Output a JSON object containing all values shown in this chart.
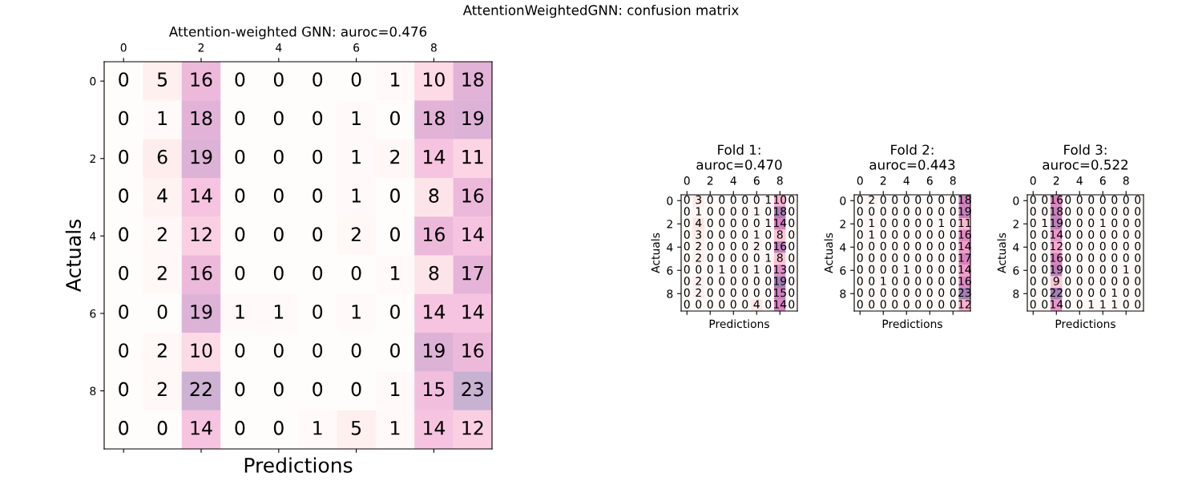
{
  "chart_data": [
    {
      "type": "heatmap",
      "title": "AttentionWeightedGNN: confusion matrix",
      "subtitle": "Attention-weighted GNN: auroc=0.476",
      "xlabel": "Predictions",
      "ylabel": "Actuals",
      "categories": [
        "0",
        null,
        "2",
        null,
        "4",
        null,
        "6",
        null,
        "8",
        null
      ],
      "y_categories": [
        "0",
        null,
        "2",
        null,
        "4",
        null,
        "6",
        null,
        "8",
        null
      ],
      "data_labels": true,
      "cells": [
        [
          0,
          5,
          16,
          0,
          0,
          0,
          0,
          1,
          10,
          18
        ],
        [
          0,
          1,
          18,
          0,
          0,
          0,
          1,
          0,
          18,
          19
        ],
        [
          0,
          6,
          19,
          0,
          0,
          0,
          1,
          2,
          14,
          11
        ],
        [
          0,
          4,
          14,
          0,
          0,
          0,
          1,
          0,
          8,
          16
        ],
        [
          0,
          2,
          12,
          0,
          0,
          0,
          2,
          0,
          16,
          14
        ],
        [
          0,
          2,
          16,
          0,
          0,
          0,
          0,
          1,
          8,
          17
        ],
        [
          0,
          0,
          19,
          1,
          1,
          0,
          1,
          0,
          14,
          14
        ],
        [
          0,
          2,
          10,
          0,
          0,
          0,
          0,
          0,
          19,
          16
        ],
        [
          0,
          2,
          22,
          0,
          0,
          0,
          0,
          1,
          15,
          23
        ],
        [
          0,
          0,
          14,
          0,
          0,
          1,
          5,
          1,
          14,
          12
        ]
      ]
    },
    {
      "type": "heatmap",
      "title": "Fold 1:\nauroc=0.470",
      "xlabel": "Predictions",
      "ylabel": "Actuals",
      "categories": [
        "0",
        null,
        "2",
        null,
        "4",
        null,
        "6",
        null,
        "8",
        null
      ],
      "y_categories": [
        "0",
        null,
        "2",
        null,
        "4",
        null,
        "6",
        null,
        "8",
        null
      ],
      "data_labels": true,
      "cells": [
        [
          0,
          3,
          0,
          0,
          0,
          0,
          0,
          1,
          10,
          0
        ],
        [
          0,
          1,
          0,
          0,
          0,
          0,
          1,
          0,
          18,
          0
        ],
        [
          0,
          4,
          0,
          0,
          0,
          0,
          0,
          1,
          14,
          0
        ],
        [
          0,
          3,
          0,
          0,
          0,
          0,
          1,
          0,
          8,
          0
        ],
        [
          0,
          2,
          0,
          0,
          0,
          0,
          2,
          0,
          16,
          0
        ],
        [
          0,
          2,
          0,
          0,
          0,
          0,
          0,
          1,
          8,
          0
        ],
        [
          0,
          0,
          0,
          1,
          0,
          0,
          1,
          0,
          13,
          0
        ],
        [
          0,
          2,
          0,
          0,
          0,
          0,
          0,
          0,
          19,
          0
        ],
        [
          0,
          2,
          0,
          0,
          0,
          0,
          0,
          0,
          15,
          0
        ],
        [
          0,
          0,
          0,
          0,
          0,
          0,
          4,
          0,
          14,
          0
        ]
      ]
    },
    {
      "type": "heatmap",
      "title": "Fold 2:\nauroc=0.443",
      "xlabel": "Predictions",
      "ylabel": "Actuals",
      "categories": [
        "0",
        null,
        "2",
        null,
        "4",
        null,
        "6",
        null,
        "8",
        null
      ],
      "y_categories": [
        "0",
        null,
        "2",
        null,
        "4",
        null,
        "6",
        null,
        "8",
        null
      ],
      "data_labels": true,
      "cells": [
        [
          0,
          2,
          0,
          0,
          0,
          0,
          0,
          0,
          0,
          18
        ],
        [
          0,
          0,
          0,
          0,
          0,
          0,
          0,
          0,
          0,
          19
        ],
        [
          0,
          1,
          0,
          0,
          0,
          0,
          0,
          1,
          0,
          11
        ],
        [
          0,
          1,
          0,
          0,
          0,
          0,
          0,
          0,
          0,
          16
        ],
        [
          0,
          0,
          0,
          0,
          0,
          0,
          0,
          0,
          0,
          14
        ],
        [
          0,
          0,
          0,
          0,
          0,
          0,
          0,
          0,
          0,
          17
        ],
        [
          0,
          0,
          0,
          0,
          1,
          0,
          0,
          0,
          0,
          14
        ],
        [
          0,
          0,
          1,
          0,
          0,
          0,
          0,
          0,
          0,
          16
        ],
        [
          0,
          0,
          0,
          0,
          0,
          0,
          0,
          0,
          0,
          23
        ],
        [
          0,
          0,
          0,
          0,
          0,
          0,
          0,
          0,
          0,
          12
        ]
      ]
    },
    {
      "type": "heatmap",
      "title": "Fold 3:\nauroc=0.522",
      "xlabel": "Predictions",
      "ylabel": "Actuals",
      "categories": [
        "0",
        null,
        "2",
        null,
        "4",
        null,
        "6",
        null,
        "8",
        null
      ],
      "y_categories": [
        "0",
        null,
        "2",
        null,
        "4",
        null,
        "6",
        null,
        "8",
        null
      ],
      "data_labels": true,
      "cells": [
        [
          0,
          0,
          16,
          0,
          0,
          0,
          0,
          0,
          0,
          0
        ],
        [
          0,
          0,
          18,
          0,
          0,
          0,
          0,
          0,
          0,
          0
        ],
        [
          0,
          1,
          19,
          0,
          0,
          0,
          1,
          0,
          0,
          0
        ],
        [
          0,
          0,
          14,
          0,
          0,
          0,
          0,
          0,
          0,
          0
        ],
        [
          0,
          0,
          12,
          0,
          0,
          0,
          0,
          0,
          0,
          0
        ],
        [
          0,
          0,
          16,
          0,
          0,
          0,
          0,
          0,
          0,
          0
        ],
        [
          0,
          0,
          19,
          0,
          0,
          0,
          0,
          0,
          1,
          0
        ],
        [
          0,
          0,
          9,
          0,
          0,
          0,
          0,
          0,
          0,
          0
        ],
        [
          0,
          0,
          22,
          0,
          0,
          0,
          0,
          1,
          0,
          0
        ],
        [
          0,
          0,
          14,
          0,
          0,
          1,
          1,
          1,
          0,
          0
        ]
      ]
    }
  ]
}
